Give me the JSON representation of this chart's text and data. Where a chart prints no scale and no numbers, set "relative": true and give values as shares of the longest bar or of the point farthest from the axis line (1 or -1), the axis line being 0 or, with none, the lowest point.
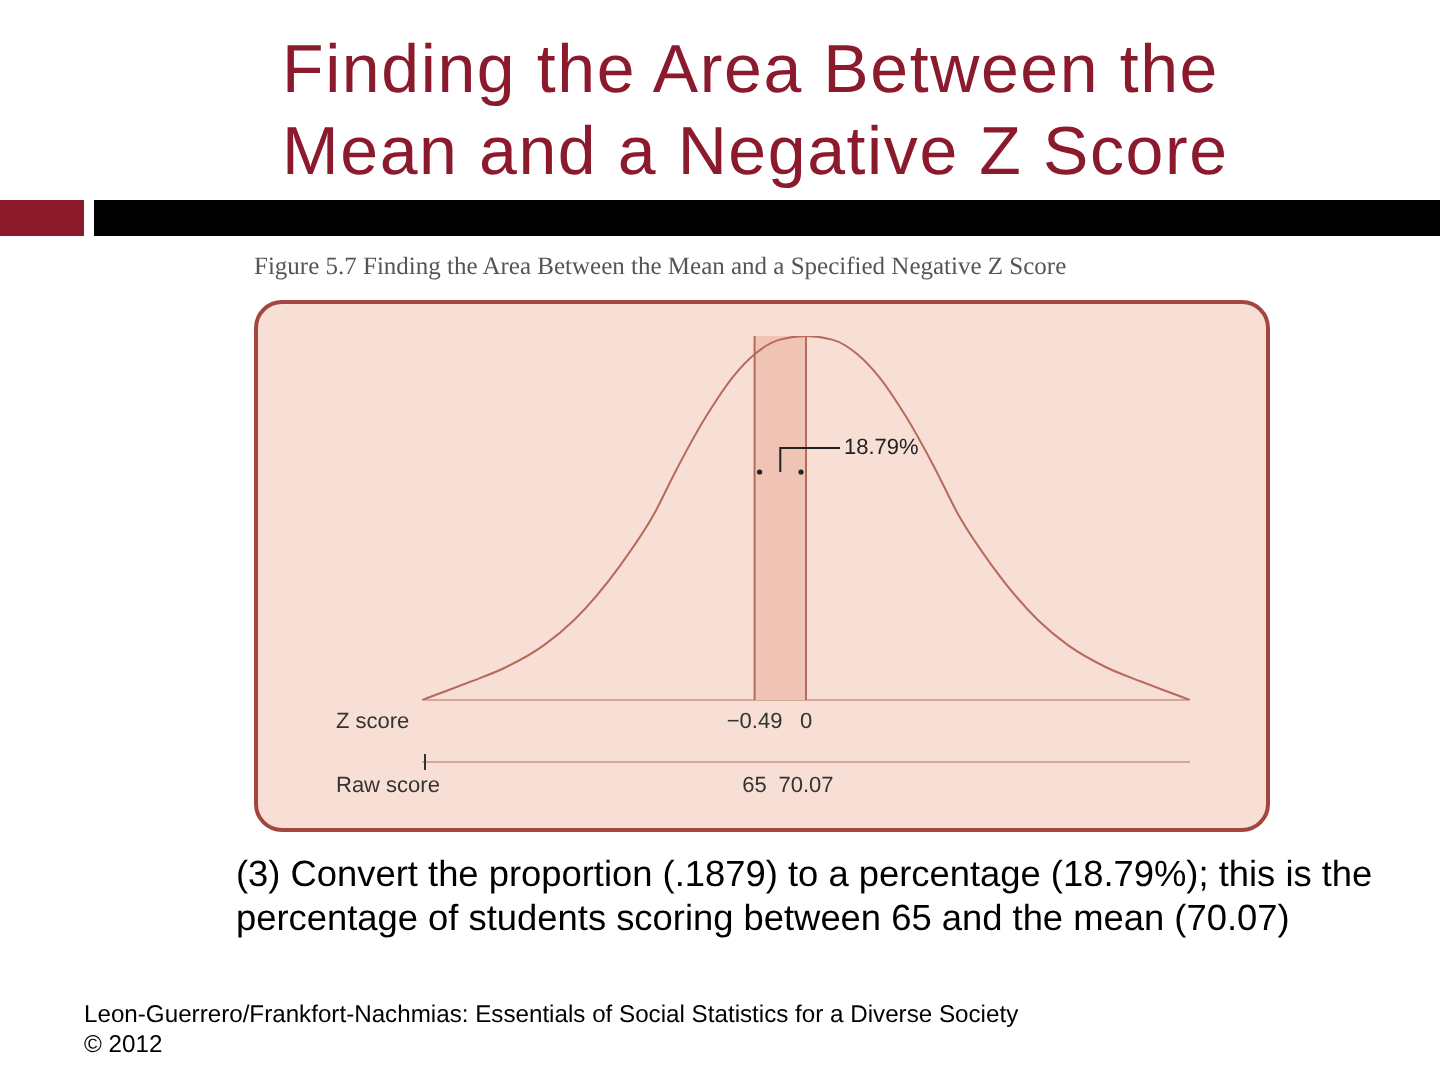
{
  "chart_data": {
    "type": "line",
    "title": "Finding the Area Between the Mean and a Negative Z Score",
    "subtitle": "Figure 5.7 Finding the Area Between the Mean and a Specified Negative Z Score",
    "xlabel": "Z score",
    "x2label": "Raw score",
    "x": [
      -3.66,
      -3.2,
      -2.86,
      -2.5,
      -2.21,
      -1.77,
      -1.45,
      -1.24,
      -0.95,
      -0.69,
      -0.49,
      -0.25,
      0,
      0.25,
      0.49,
      0.69,
      0.95,
      1.24,
      1.45,
      1.77,
      2.21,
      2.5,
      2.86,
      3.2,
      3.66
    ],
    "values": [
      0,
      0.05,
      0.09,
      0.15,
      0.22,
      0.37,
      0.51,
      0.63,
      0.78,
      0.89,
      0.95,
      0.99,
      1,
      0.99,
      0.95,
      0.89,
      0.78,
      0.63,
      0.51,
      0.37,
      0.22,
      0.15,
      0.09,
      0.05,
      0
    ],
    "color": "#b8695c",
    "relative": true,
    "marker": "none",
    "line_style": "solid",
    "xlim": [
      -3.66,
      3.66
    ],
    "xticks": [
      {
        "value": -0.49,
        "label": "−0.49"
      },
      0
    ],
    "x2lim": [
      32.2,
      107.94
    ],
    "x2ticks": [
      65,
      70.07
    ],
    "bands": [
      {
        "axis": "x",
        "from": -0.49,
        "to": 0,
        "label": "18.79%",
        "color": "#efc4b5"
      }
    ],
    "annotations": [
      "(3) Convert the proportion (.1879) to a percentage (18.79%); this is the percentage of students scoring between 65 and the mean (70.07)",
      "Leon-Guerrero/Frankfort-Nachmias: Essentials of Social Statistics for a Diverse Society",
      "© 2012"
    ]
  }
}
